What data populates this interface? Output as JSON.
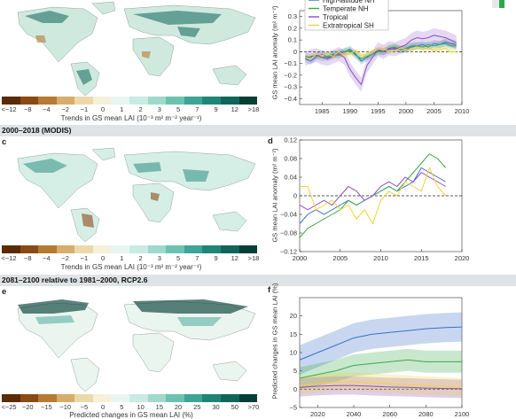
{
  "sections": {
    "c_header": "2000–2018 (MODIS)",
    "e_header": "2081–2100 relative to 1981–2000, RCP2.6"
  },
  "panels": {
    "c_letter": "c",
    "d_letter": "d",
    "e_letter": "e",
    "f_letter": "f"
  },
  "colorbars": {
    "top": {
      "ticks": [
        "<−12",
        "−8",
        "−4",
        "−2",
        "−1",
        "0",
        "1",
        "2",
        "3",
        "5",
        "7",
        "9",
        "12",
        ">18"
      ],
      "caption": "Trends in GS mean LAI (10⁻³ m² m⁻² year⁻¹)",
      "colors": [
        "#5b2a06",
        "#8a4a14",
        "#b57a33",
        "#d7ad6c",
        "#ecd9aa",
        "#f6efd9",
        "#e9f5f0",
        "#c9ebe2",
        "#9fd9cb",
        "#6cc2b1",
        "#3ea495",
        "#1f8576",
        "#0f6658",
        "#053f36"
      ]
    },
    "mid": {
      "ticks": [
        "<−12",
        "−8",
        "−4",
        "−2",
        "−1",
        "0",
        "1",
        "2",
        "3",
        "5",
        "7",
        "9",
        "12",
        ">18"
      ],
      "caption": "Trends in GS mean LAI (10⁻³ m² m⁻² year⁻¹)"
    },
    "bottom": {
      "ticks": [
        "<−25",
        "−20",
        "−15",
        "−10",
        "−5",
        "0",
        "5",
        "10",
        "15",
        "20",
        "25",
        "30",
        "50",
        ">70"
      ],
      "caption": "Predicted changes in GS mean LAI (%)"
    }
  },
  "chart_data": [
    {
      "panel": "b",
      "type": "line",
      "ylabel": "GS mean LAI anomaly (m² m⁻²)",
      "ylim": [
        -0.45,
        0.35
      ],
      "xlim": [
        1981,
        2010
      ],
      "yticks": [
        "0.3",
        "0.2",
        "0.1",
        "0",
        "−0.1",
        "−0.2",
        "−0.3",
        "−0.4"
      ],
      "xticks": [
        "1985",
        "1990",
        "1995",
        "2000",
        "2005",
        "2010"
      ],
      "legend": [
        "High-latitude NH",
        "Temperate NH",
        "Tropical",
        "Extratropical SH"
      ],
      "series": [
        {
          "name": "High-latitude NH",
          "color": "#3b6fc4",
          "x": [
            1982,
            1983,
            1984,
            1985,
            1986,
            1987,
            1988,
            1989,
            1990,
            1991,
            1992,
            1993,
            1994,
            1995,
            1996,
            1997,
            1998,
            1999,
            2000,
            2001,
            2002,
            2003,
            2004,
            2005,
            2006,
            2007,
            2008,
            2009
          ],
          "y": [
            -0.06,
            -0.08,
            -0.04,
            -0.02,
            -0.05,
            -0.03,
            -0.01,
            0.0,
            0.02,
            -0.02,
            -0.08,
            -0.05,
            -0.02,
            0.01,
            0.0,
            0.02,
            0.03,
            0.02,
            0.02,
            0.04,
            0.05,
            0.06,
            0.04,
            0.07,
            0.06,
            0.08,
            0.07,
            0.06
          ]
        },
        {
          "name": "Temperate NH",
          "color": "#3aa84a",
          "x": [
            1982,
            1983,
            1984,
            1985,
            1986,
            1987,
            1988,
            1989,
            1990,
            1991,
            1992,
            1993,
            1994,
            1995,
            1996,
            1997,
            1998,
            1999,
            2000,
            2001,
            2002,
            2003,
            2004,
            2005,
            2006,
            2007,
            2008,
            2009
          ],
          "y": [
            -0.04,
            -0.05,
            -0.03,
            -0.05,
            -0.04,
            -0.02,
            -0.03,
            0.0,
            0.01,
            -0.03,
            -0.06,
            -0.04,
            -0.02,
            0.0,
            0.0,
            0.03,
            0.04,
            0.02,
            0.03,
            0.05,
            0.05,
            0.04,
            0.06,
            0.05,
            0.06,
            0.07,
            0.05,
            0.05
          ]
        },
        {
          "name": "Tropical",
          "color": "#8a4ec2",
          "x": [
            1982,
            1983,
            1984,
            1985,
            1986,
            1987,
            1988,
            1989,
            1990,
            1991,
            1992,
            1993,
            1994,
            1995,
            1996,
            1997,
            1998,
            1999,
            2000,
            2001,
            2002,
            2003,
            2004,
            2005,
            2006,
            2007,
            2008,
            2009
          ],
          "y": [
            -0.06,
            -0.04,
            -0.03,
            -0.05,
            -0.06,
            -0.04,
            -0.02,
            -0.05,
            -0.15,
            -0.22,
            -0.28,
            -0.12,
            -0.05,
            0.02,
            0.0,
            0.03,
            0.02,
            0.04,
            0.06,
            0.1,
            0.12,
            0.11,
            0.12,
            0.14,
            0.13,
            0.12,
            0.1,
            0.08
          ]
        },
        {
          "name": "Extratropical SH",
          "color": "#f2d23c",
          "x": [
            1982,
            1983,
            1984,
            1985,
            1986,
            1987,
            1988,
            1989,
            1990,
            1991,
            1992,
            1993,
            1994,
            1995,
            1996,
            1997,
            1998,
            1999,
            2000,
            2001,
            2002,
            2003,
            2004,
            2005,
            2006,
            2007,
            2008,
            2009
          ],
          "y": [
            -0.05,
            -0.06,
            -0.02,
            -0.03,
            -0.02,
            -0.04,
            0.0,
            -0.03,
            -0.02,
            0.01,
            -0.03,
            -0.02,
            0.0,
            0.02,
            0.03,
            0.0,
            0.01,
            0.03,
            0.02,
            0.01,
            0.04,
            0.02,
            0.03,
            0.01,
            0.02,
            0.03,
            0.0,
            0.0
          ]
        }
      ]
    },
    {
      "panel": "d",
      "type": "line",
      "ylabel": "GS mean LAI anomaly (m² m⁻²)",
      "ylim": [
        -0.12,
        0.12
      ],
      "xlim": [
        2000,
        2020
      ],
      "yticks": [
        "0.12",
        "0.08",
        "0.04",
        "0",
        "−0.04",
        "−0.08",
        "−0.12"
      ],
      "xticks": [
        "2000",
        "2005",
        "2010",
        "2015",
        "2020"
      ],
      "series": [
        {
          "name": "High-latitude NH",
          "color": "#3b6fc4",
          "x": [
            2000,
            2001,
            2002,
            2003,
            2004,
            2005,
            2006,
            2007,
            2008,
            2009,
            2010,
            2011,
            2012,
            2013,
            2014,
            2015,
            2016,
            2017,
            2018
          ],
          "y": [
            -0.06,
            -0.04,
            -0.03,
            -0.04,
            -0.03,
            -0.02,
            -0.01,
            -0.02,
            -0.01,
            0.0,
            0.01,
            0.02,
            0.01,
            0.02,
            0.03,
            0.06,
            0.05,
            0.04,
            0.03
          ]
        },
        {
          "name": "Temperate NH",
          "color": "#3aa84a",
          "x": [
            2000,
            2001,
            2002,
            2003,
            2004,
            2005,
            2006,
            2007,
            2008,
            2009,
            2010,
            2011,
            2012,
            2013,
            2014,
            2015,
            2016,
            2017,
            2018
          ],
          "y": [
            -0.09,
            -0.07,
            -0.06,
            -0.05,
            -0.04,
            -0.03,
            -0.01,
            -0.02,
            -0.01,
            0.0,
            0.01,
            0.02,
            0.01,
            0.03,
            0.05,
            0.07,
            0.09,
            0.08,
            0.06
          ]
        },
        {
          "name": "Tropical",
          "color": "#8a4ec2",
          "x": [
            2000,
            2001,
            2002,
            2003,
            2004,
            2005,
            2006,
            2007,
            2008,
            2009,
            2010,
            2011,
            2012,
            2013,
            2014,
            2015,
            2016,
            2017,
            2018
          ],
          "y": [
            -0.02,
            -0.03,
            -0.02,
            -0.01,
            -0.02,
            0.0,
            0.02,
            0.01,
            -0.01,
            0.0,
            0.02,
            0.03,
            0.02,
            0.04,
            0.03,
            0.05,
            0.04,
            0.03,
            0.02
          ]
        },
        {
          "name": "Extratropical SH",
          "color": "#f2d23c",
          "x": [
            2000,
            2001,
            2002,
            2003,
            2004,
            2005,
            2006,
            2007,
            2008,
            2009,
            2010,
            2011,
            2012,
            2013,
            2014,
            2015,
            2016,
            2017,
            2018
          ],
          "y": [
            0.02,
            0.02,
            -0.03,
            -0.02,
            -0.01,
            -0.03,
            -0.02,
            -0.05,
            -0.03,
            -0.06,
            -0.01,
            0.01,
            0.0,
            0.03,
            0.02,
            0.01,
            0.06,
            0.02,
            0.0
          ]
        }
      ]
    },
    {
      "panel": "f",
      "type": "line",
      "ylabel": "Predicted changes in GS mean LAI (%)",
      "ylim": [
        -5,
        25
      ],
      "xlim": [
        2010,
        2100
      ],
      "yticks": [
        "20",
        "15",
        "10",
        "5",
        "0",
        "−5"
      ],
      "xticks": [
        "2020",
        "2040",
        "2060",
        "2080",
        "2100"
      ],
      "series": [
        {
          "name": "High-latitude NH",
          "color": "#3b6fc4",
          "x": [
            2010,
            2020,
            2030,
            2040,
            2050,
            2060,
            2070,
            2080,
            2090,
            2100
          ],
          "y": [
            8,
            10,
            12,
            14,
            15,
            15.5,
            16,
            16.5,
            16.8,
            17
          ]
        },
        {
          "name": "Temperate NH",
          "color": "#3aa84a",
          "x": [
            2010,
            2020,
            2030,
            2040,
            2050,
            2060,
            2070,
            2080,
            2090,
            2100
          ],
          "y": [
            3,
            4,
            5,
            6.5,
            7,
            7.5,
            8,
            7.5,
            7.5,
            7.5
          ]
        },
        {
          "name": "Tropical",
          "color": "#8a4ec2",
          "x": [
            2010,
            2020,
            2030,
            2040,
            2050,
            2060,
            2070,
            2080,
            2090,
            2100
          ],
          "y": [
            0.5,
            0.8,
            1,
            1,
            0.8,
            0.6,
            0.5,
            0.3,
            0.2,
            0.1
          ]
        },
        {
          "name": "Extratropical SH",
          "color": "#f2d23c",
          "x": [
            2010,
            2020,
            2030,
            2040,
            2050,
            2060,
            2070,
            2080,
            2090,
            2100
          ],
          "y": [
            1,
            1.5,
            2,
            2,
            1.8,
            1.5,
            1.2,
            1,
            0.8,
            0.5
          ]
        }
      ]
    }
  ]
}
